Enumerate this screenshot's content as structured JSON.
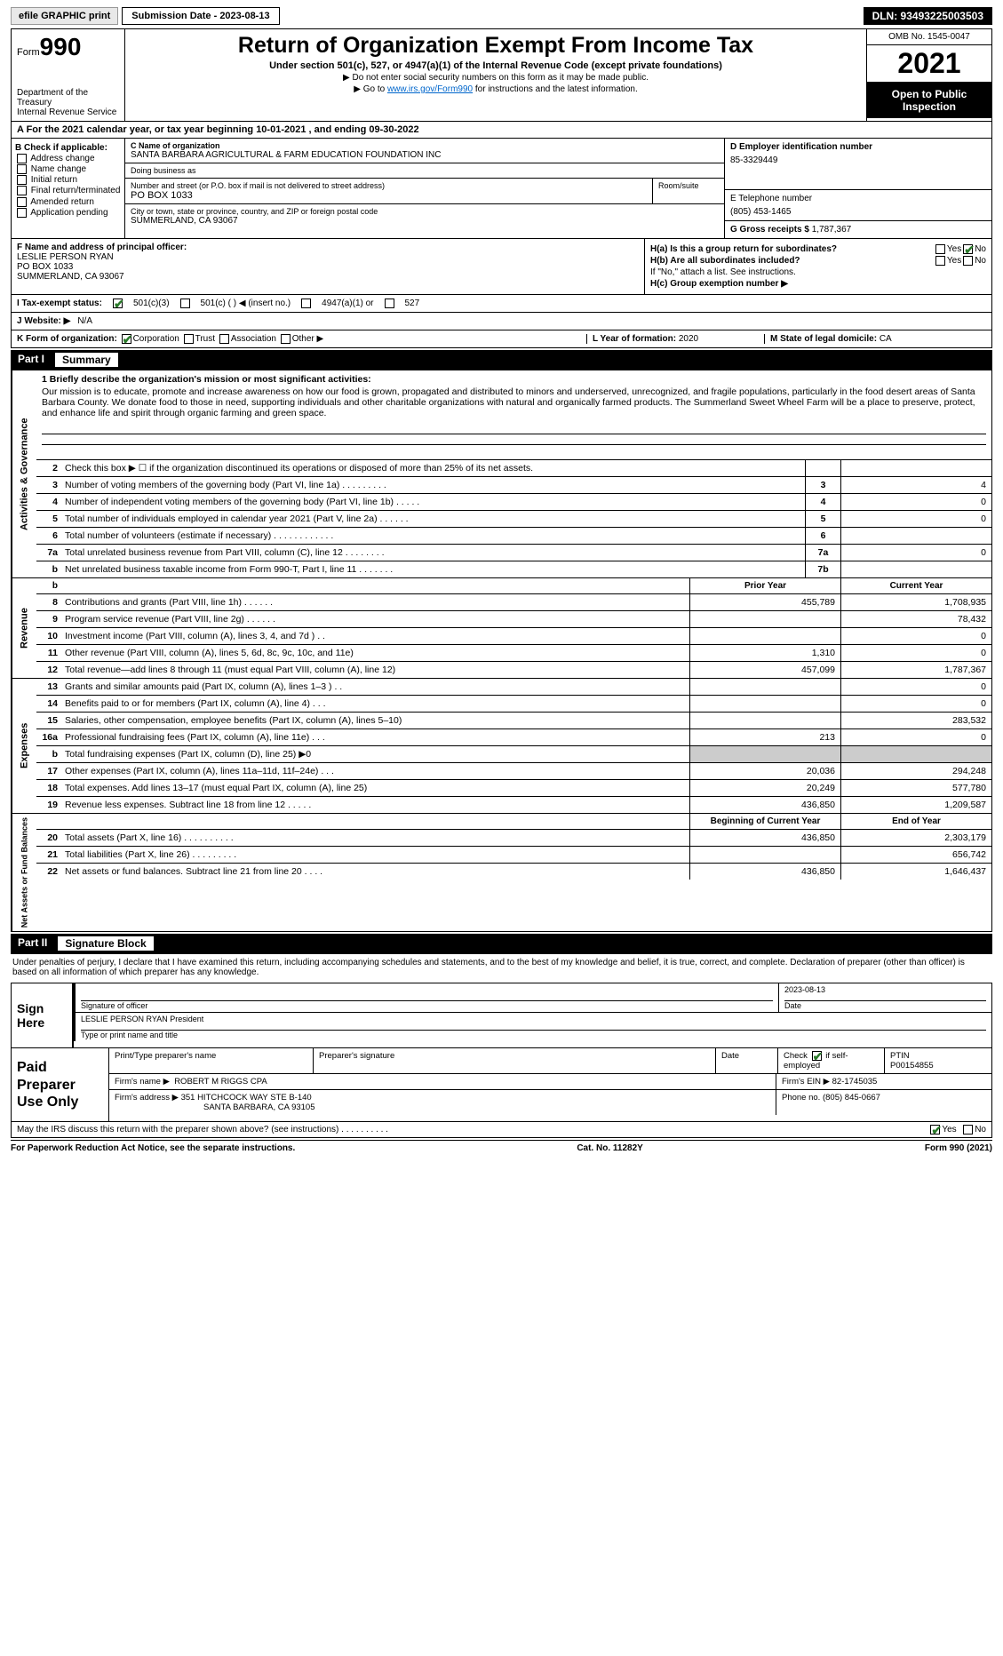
{
  "topbar": {
    "efile": "efile GRAPHIC print",
    "submission": "Submission Date - 2023-08-13",
    "dln": "DLN: 93493225003503"
  },
  "header": {
    "form_prefix": "Form",
    "form_num": "990",
    "dept": "Department of the Treasury",
    "irs": "Internal Revenue Service",
    "title": "Return of Organization Exempt From Income Tax",
    "subtitle": "Under section 501(c), 527, or 4947(a)(1) of the Internal Revenue Code (except private foundations)",
    "note1": "▶ Do not enter social security numbers on this form as it may be made public.",
    "note2_pre": "▶ Go to ",
    "note2_link": "www.irs.gov/Form990",
    "note2_post": " for instructions and the latest information.",
    "omb": "OMB No. 1545-0047",
    "year": "2021",
    "open": "Open to Public Inspection"
  },
  "rowA": "A For the 2021 calendar year, or tax year beginning 10-01-2021    , and ending 09-30-2022",
  "boxB": {
    "hdr": "B Check if applicable:",
    "o1": "Address change",
    "o2": "Name change",
    "o3": "Initial return",
    "o4": "Final return/terminated",
    "o5": "Amended return",
    "o6": "Application pending"
  },
  "boxC": {
    "name_lbl": "C Name of organization",
    "name": "SANTA BARBARA AGRICULTURAL & FARM EDUCATION FOUNDATION INC",
    "dba_lbl": "Doing business as",
    "dba": "",
    "addr_lbl": "Number and street (or P.O. box if mail is not delivered to street address)",
    "addr": "PO BOX 1033",
    "room_lbl": "Room/suite",
    "city_lbl": "City or town, state or province, country, and ZIP or foreign postal code",
    "city": "SUMMERLAND, CA  93067"
  },
  "boxD": {
    "lbl": "D Employer identification number",
    "val": "85-3329449"
  },
  "boxE": {
    "lbl": "E Telephone number",
    "val": "(805) 453-1465"
  },
  "boxG": {
    "lbl": "G Gross receipts $",
    "val": "1,787,367"
  },
  "boxF": {
    "lbl": "F Name and address of principal officer:",
    "name": "LESLIE PERSON RYAN",
    "addr1": "PO BOX 1033",
    "addr2": "SUMMERLAND, CA  93067"
  },
  "boxH": {
    "ha": "H(a)  Is this a group return for subordinates?",
    "hb": "H(b)  Are all subordinates included?",
    "hb_note": "If \"No,\" attach a list. See instructions.",
    "hc": "H(c)  Group exemption number ▶"
  },
  "rowI": {
    "lbl": "I   Tax-exempt status:",
    "o1": "501(c)(3)",
    "o2": "501(c) (  ) ◀ (insert no.)",
    "o3": "4947(a)(1) or",
    "o4": "527"
  },
  "rowJ": {
    "lbl": "J   Website: ▶",
    "val": "N/A"
  },
  "rowK": {
    "lbl": "K Form of organization:",
    "o1": "Corporation",
    "o2": "Trust",
    "o3": "Association",
    "o4": "Other ▶",
    "l_lbl": "L Year of formation:",
    "l_val": "2020",
    "m_lbl": "M State of legal domicile:",
    "m_val": "CA"
  },
  "part1": {
    "num": "Part I",
    "title": "Summary"
  },
  "vtabs": {
    "ag": "Activities & Governance",
    "rev": "Revenue",
    "exp": "Expenses",
    "na": "Net Assets or Fund Balances"
  },
  "mission": {
    "lbl": "1   Briefly describe the organization's mission or most significant activities:",
    "txt": "Our mission is to educate, promote and increase awareness on how our food is grown, propagated and distributed to minors and underserved, unrecognized, and fragile populations, particularly in the food desert areas of Santa Barbara County. We donate food to those in need, supporting individuals and other charitable organizations with natural and organically farmed products. The Summerland Sweet Wheel Farm will be a place to preserve, protect, and enhance life and spirit through organic farming and green space."
  },
  "lines_ag": [
    {
      "n": "2",
      "t": "Check this box ▶ ☐  if the organization discontinued its operations or disposed of more than 25% of its net assets.",
      "box": "",
      "v": ""
    },
    {
      "n": "3",
      "t": "Number of voting members of the governing body (Part VI, line 1a)   .    .    .    .    .    .    .    .    .",
      "box": "3",
      "v": "4"
    },
    {
      "n": "4",
      "t": "Number of independent voting members of the governing body (Part VI, line 1b)    .    .    .    .    .",
      "box": "4",
      "v": "0"
    },
    {
      "n": "5",
      "t": "Total number of individuals employed in calendar year 2021 (Part V, line 2a)   .    .    .    .    .    .",
      "box": "5",
      "v": "0"
    },
    {
      "n": "6",
      "t": "Total number of volunteers (estimate if necessary)   .    .    .    .    .    .    .    .    .    .    .    .",
      "box": "6",
      "v": ""
    },
    {
      "n": "7a",
      "t": "Total unrelated business revenue from Part VIII, column (C), line 12   .    .    .    .    .    .    .    .",
      "box": "7a",
      "v": "0"
    },
    {
      "n": "b",
      "t": "Net unrelated business taxable income from Form 990-T, Part I, line 11   .    .    .    .    .    .    .",
      "box": "7b",
      "v": ""
    }
  ],
  "col_hdrs": {
    "prior": "Prior Year",
    "current": "Current Year"
  },
  "lines_rev": [
    {
      "n": "8",
      "t": "Contributions and grants (Part VIII, line 1h)   .    .    .    .    .    .",
      "p": "455,789",
      "c": "1,708,935"
    },
    {
      "n": "9",
      "t": "Program service revenue (Part VIII, line 2g)   .    .    .    .    .    .",
      "p": "",
      "c": "78,432"
    },
    {
      "n": "10",
      "t": "Investment income (Part VIII, column (A), lines 3, 4, and 7d )   .    .",
      "p": "",
      "c": "0"
    },
    {
      "n": "11",
      "t": "Other revenue (Part VIII, column (A), lines 5, 6d, 8c, 9c, 10c, and 11e)",
      "p": "1,310",
      "c": "0"
    },
    {
      "n": "12",
      "t": "Total revenue—add lines 8 through 11 (must equal Part VIII, column (A), line 12)",
      "p": "457,099",
      "c": "1,787,367"
    }
  ],
  "lines_exp": [
    {
      "n": "13",
      "t": "Grants and similar amounts paid (Part IX, column (A), lines 1–3 )  .    .",
      "p": "",
      "c": "0"
    },
    {
      "n": "14",
      "t": "Benefits paid to or for members (Part IX, column (A), line 4)  .    .    .",
      "p": "",
      "c": "0"
    },
    {
      "n": "15",
      "t": "Salaries, other compensation, employee benefits (Part IX, column (A), lines 5–10)",
      "p": "",
      "c": "283,532"
    },
    {
      "n": "16a",
      "t": "Professional fundraising fees (Part IX, column (A), line 11e)  .    .    .",
      "p": "213",
      "c": "0"
    },
    {
      "n": "b",
      "t": "Total fundraising expenses (Part IX, column (D), line 25) ▶0",
      "p": "grey",
      "c": "grey"
    },
    {
      "n": "17",
      "t": "Other expenses (Part IX, column (A), lines 11a–11d, 11f–24e)   .    .    .",
      "p": "20,036",
      "c": "294,248"
    },
    {
      "n": "18",
      "t": "Total expenses. Add lines 13–17 (must equal Part IX, column (A), line 25)",
      "p": "20,249",
      "c": "577,780"
    },
    {
      "n": "19",
      "t": "Revenue less expenses. Subtract line 18 from line 12  .    .    .    .    .",
      "p": "436,850",
      "c": "1,209,587"
    }
  ],
  "na_hdrs": {
    "begin": "Beginning of Current Year",
    "end": "End of Year"
  },
  "lines_na": [
    {
      "n": "20",
      "t": "Total assets (Part X, line 16)  .    .    .    .    .    .    .    .    .    .",
      "p": "436,850",
      "c": "2,303,179"
    },
    {
      "n": "21",
      "t": "Total liabilities (Part X, line 26)  .    .    .    .    .    .    .    .    .",
      "p": "",
      "c": "656,742"
    },
    {
      "n": "22",
      "t": "Net assets or fund balances. Subtract line 21 from line 20  .    .    .    .",
      "p": "436,850",
      "c": "1,646,437"
    }
  ],
  "part2": {
    "num": "Part II",
    "title": "Signature Block"
  },
  "sig": {
    "intro": "Under penalties of perjury, I declare that I have examined this return, including accompanying schedules and statements, and to the best of my knowledge and belief, it is true, correct, and complete. Declaration of preparer (other than officer) is based on all information of which preparer has any knowledge.",
    "sign_here": "Sign Here",
    "sig_officer": "Signature of officer",
    "date": "Date",
    "date_val": "2023-08-13",
    "name_title": "LESLIE PERSON RYAN  President",
    "type_lbl": "Type or print name and title"
  },
  "prep": {
    "title": "Paid Preparer Use Only",
    "h1": "Print/Type preparer's name",
    "h2": "Preparer's signature",
    "h3": "Date",
    "h4_pre": "Check",
    "h4_post": "if self-employed",
    "ptin_lbl": "PTIN",
    "ptin": "P00154855",
    "firm_lbl": "Firm's name    ▶",
    "firm": "ROBERT M RIGGS CPA",
    "ein_lbl": "Firm's EIN ▶",
    "ein": "82-1745035",
    "addr_lbl": "Firm's address ▶",
    "addr1": "351 HITCHCOCK WAY STE B-140",
    "addr2": "SANTA BARBARA, CA  93105",
    "phone_lbl": "Phone no.",
    "phone": "(805) 845-0667"
  },
  "discuss": "May the IRS discuss this return with the preparer shown above? (see instructions)   .    .    .    .    .    .    .    .    .    .",
  "footer": {
    "l": "For Paperwork Reduction Act Notice, see the separate instructions.",
    "m": "Cat. No. 11282Y",
    "r": "Form 990 (2021)"
  },
  "yesno": {
    "yes": "Yes",
    "no": "No"
  }
}
